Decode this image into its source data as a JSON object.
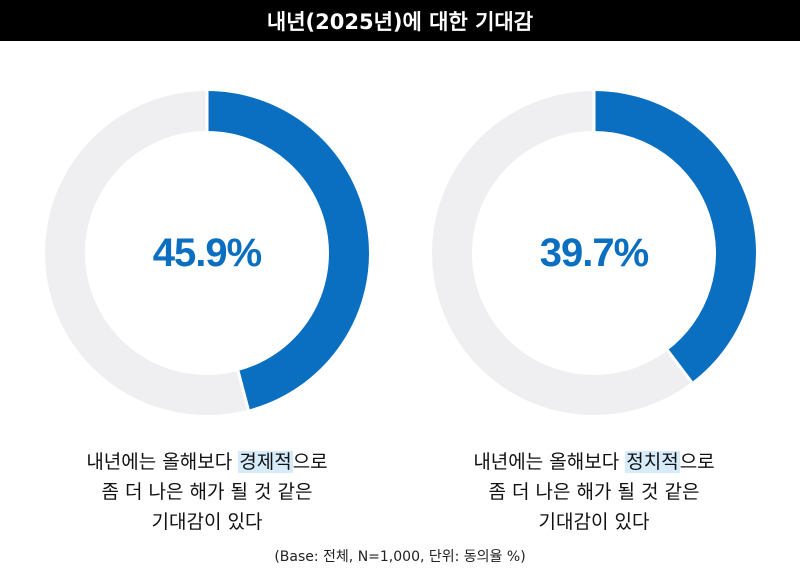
{
  "title": "내년(2025년)에 대한 기대감",
  "chart_data": [
    {
      "type": "pie",
      "donut": true,
      "value": 45.9,
      "remainder": 54.1,
      "value_label": "45.9%",
      "caption": {
        "line1_before": "내년에는 올해보다 ",
        "line1_highlight": "경제적",
        "line1_after": "으로",
        "line2": "좀 더 나은 해가 될 것 같은",
        "line3": "기대감이 있다"
      },
      "colors": {
        "value": "#0b6fc1",
        "remainder": "#efeff1"
      }
    },
    {
      "type": "pie",
      "donut": true,
      "value": 39.7,
      "remainder": 60.3,
      "value_label": "39.7%",
      "caption": {
        "line1_before": "내년에는 올해보다 ",
        "line1_highlight": "정치적",
        "line1_after": "으로",
        "line2": "좀 더 나은 해가 될 것 같은",
        "line3": "기대감이 있다"
      },
      "colors": {
        "value": "#0b6fc1",
        "remainder": "#efeff1"
      }
    }
  ],
  "footnote": "(Base: 전체, N=1,000, 단위: 동의율 %)"
}
